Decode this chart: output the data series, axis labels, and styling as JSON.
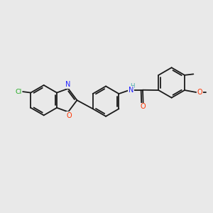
{
  "background_color": "#e9e9e9",
  "bond_color": "#1a1a1a",
  "atom_colors": {
    "Cl": "#22aa22",
    "N": "#2222ff",
    "O": "#ff3300",
    "H": "#44aaaa",
    "C": "#1a1a1a"
  },
  "figsize": [
    3.0,
    3.0
  ],
  "dpi": 100,
  "bond_lw": 1.3,
  "dbl_sep": 0.08,
  "font_size": 7.0,
  "ring_r": 0.72
}
